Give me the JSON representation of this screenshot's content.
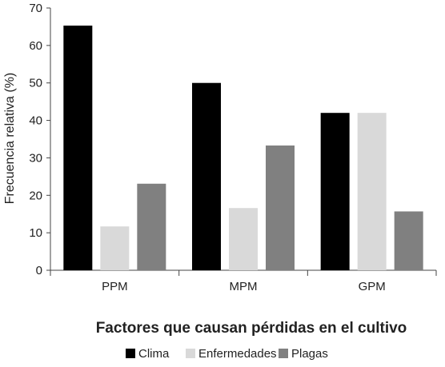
{
  "chart_data": {
    "type": "bar",
    "categories": [
      "PPM",
      "MPM",
      "GPM"
    ],
    "series": [
      {
        "name": "Clima",
        "values": [
          65.3,
          50.0,
          42.0
        ],
        "color": "#000000"
      },
      {
        "name": "Enfermedades",
        "values": [
          11.7,
          16.6,
          42.0
        ],
        "color": "#d9d9d9"
      },
      {
        "name": "Plagas",
        "values": [
          23.1,
          33.3,
          15.7
        ],
        "color": "#808080"
      }
    ],
    "title": "",
    "xlabel": "Factores que causan pérdidas en el cultivo",
    "ylabel": "Frecuencia relativa (%)",
    "ylim": [
      0,
      70
    ],
    "yticks": [
      "0",
      "10",
      "20",
      "30",
      "40",
      "50",
      "60",
      "70"
    ],
    "grid": false,
    "legend_position": "bottom"
  }
}
